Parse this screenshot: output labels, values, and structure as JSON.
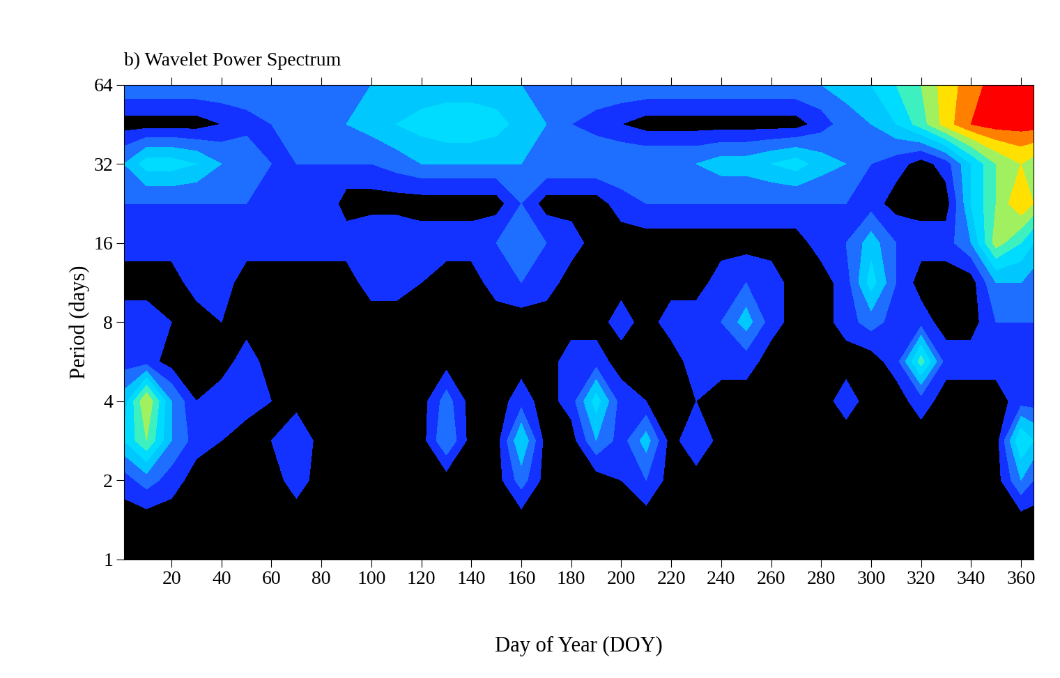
{
  "chart_data": {
    "type": "contour",
    "title": "b) Wavelet Power Spectrum",
    "x_label": "Day of Year (DOY)",
    "y_label": "Period (days)",
    "log": "y",
    "x": [
      1,
      10,
      20,
      30,
      40,
      50,
      60,
      70,
      80,
      90,
      100,
      110,
      120,
      130,
      140,
      150,
      160,
      170,
      180,
      190,
      200,
      210,
      220,
      230,
      240,
      250,
      260,
      270,
      280,
      290,
      300,
      310,
      320,
      330,
      340,
      350,
      360,
      365
    ],
    "y": [
      1,
      1.41,
      2,
      2.83,
      4,
      5.66,
      8,
      11.3,
      16,
      22.6,
      32,
      45.3,
      64
    ],
    "z": [
      [
        0.5,
        0.5,
        0.5,
        0.5,
        0.5,
        0.5,
        0.5,
        0.5,
        0.5,
        0.5,
        0.5,
        0.5,
        0.5,
        0.5,
        0.5,
        0.5,
        0.5,
        0.5,
        0.5,
        0.5,
        0.5,
        0.5,
        0.5,
        0.5,
        0.5,
        0.5,
        0.5,
        0.5,
        0.5,
        0.5,
        0.5,
        0.5,
        0.5,
        0.5,
        0.5,
        0.5,
        0.5,
        0.5
      ],
      [
        0.5,
        0.5,
        0.5,
        0.5,
        0.5,
        0.5,
        0.5,
        0.5,
        0.5,
        0.5,
        0.5,
        0.5,
        0.5,
        0.5,
        0.5,
        0.5,
        0.5,
        0.5,
        0.5,
        0.5,
        0.5,
        0.5,
        0.5,
        0.5,
        0.5,
        0.5,
        0.5,
        0.5,
        0.5,
        0.5,
        0.5,
        0.5,
        0.5,
        0.5,
        0.5,
        0.5,
        0.5,
        0.5
      ],
      [
        1.5,
        2.5,
        1.5,
        0.5,
        0.5,
        0.5,
        0.5,
        1.5,
        0.5,
        0.5,
        0.5,
        0.5,
        0.5,
        0.5,
        0.5,
        0.5,
        2.5,
        0.5,
        0.5,
        0.5,
        1,
        2,
        0.5,
        0.5,
        0.5,
        0.5,
        0.5,
        0.5,
        0.5,
        0.5,
        0.5,
        0.5,
        0.5,
        0.5,
        0.5,
        0.5,
        3,
        2
      ],
      [
        4,
        6,
        3,
        1.5,
        1,
        0.5,
        1,
        2,
        0.5,
        0.5,
        1,
        0.5,
        0.5,
        3,
        0.5,
        0.5,
        4,
        0.5,
        0.5,
        3,
        1.5,
        3.5,
        0.5,
        2,
        0.5,
        0.5,
        0.5,
        1,
        0.5,
        0.5,
        0.5,
        0.5,
        0.5,
        0.5,
        0.5,
        0.5,
        5,
        4
      ],
      [
        3.5,
        7,
        3,
        1,
        1.5,
        1.5,
        1,
        0.5,
        0.5,
        0.5,
        0.5,
        0.5,
        0.5,
        2.5,
        0.5,
        0.5,
        1.5,
        0.5,
        1.5,
        4.5,
        1.5,
        1,
        0.5,
        1,
        0.5,
        0.5,
        0.5,
        0.5,
        0.5,
        1.5,
        0.5,
        0.5,
        1.5,
        0.5,
        0.5,
        0.5,
        1.5,
        1.5
      ],
      [
        1.5,
        1.5,
        0.5,
        0.5,
        0.5,
        1.5,
        0.5,
        0.5,
        0.5,
        0.5,
        0.5,
        0.5,
        0.5,
        0.5,
        0.5,
        0.5,
        0.5,
        0.5,
        1.5,
        1.5,
        0.5,
        0.5,
        0.5,
        1.5,
        1.5,
        1.5,
        0.5,
        0.5,
        0.5,
        0.5,
        0.5,
        1.5,
        5.5,
        1.5,
        1.5,
        1.5,
        1.5,
        1.5
      ],
      [
        1.5,
        1.5,
        1,
        0.5,
        1,
        0.5,
        0.5,
        0.5,
        0.5,
        0.5,
        0.5,
        0.5,
        0.5,
        0.5,
        0.5,
        0.5,
        0.5,
        0.5,
        0.5,
        0.5,
        1.5,
        0.5,
        1.5,
        1.5,
        2,
        3.5,
        1.5,
        0.5,
        0.5,
        1.5,
        2.5,
        1.5,
        1.5,
        0.5,
        0.5,
        2,
        2,
        2
      ],
      [
        0.5,
        0.5,
        0.5,
        1.5,
        1.5,
        0.5,
        0.5,
        0.5,
        0.5,
        0.5,
        1.5,
        1.5,
        1,
        0.5,
        0.5,
        1.5,
        2,
        1.5,
        0.5,
        0.5,
        0.5,
        0.5,
        0.5,
        0.5,
        1.5,
        2,
        1.5,
        0.5,
        0.5,
        1.5,
        4.5,
        2,
        0.5,
        0.5,
        0.5,
        3,
        3,
        2.5
      ],
      [
        1.5,
        1.5,
        1.5,
        1,
        1.5,
        1.5,
        1.5,
        1.5,
        1.5,
        1.5,
        2,
        2,
        1.5,
        1.5,
        1.5,
        2,
        2.5,
        2,
        1.5,
        0.5,
        0.5,
        0.5,
        0.5,
        0.5,
        0.5,
        0.5,
        0.5,
        0.5,
        1.5,
        2,
        3.5,
        2,
        1.5,
        1.5,
        3,
        6.5,
        5,
        4
      ],
      [
        2,
        2,
        2,
        2,
        2,
        2,
        2,
        2,
        2,
        0.5,
        0.5,
        0.5,
        0.5,
        0.5,
        0.5,
        0.5,
        2,
        0.5,
        0.5,
        0.5,
        1.5,
        2,
        2,
        2,
        2,
        2,
        2,
        2,
        2,
        2,
        1.5,
        0.5,
        0.5,
        0.5,
        4,
        6,
        8,
        7
      ],
      [
        3,
        4.5,
        4.5,
        4,
        3,
        3,
        2,
        2,
        2,
        2,
        2,
        2.5,
        3,
        3,
        3,
        3,
        3,
        3,
        3,
        3,
        3,
        3,
        3,
        3,
        3.5,
        3.5,
        4,
        4.5,
        3.5,
        3,
        2,
        1.5,
        0.5,
        1.5,
        4,
        6,
        7,
        6.5
      ],
      [
        0.5,
        0.5,
        0.5,
        0.5,
        1,
        1.5,
        2,
        3,
        3,
        3,
        3.5,
        4,
        4.5,
        5,
        5,
        4.5,
        3.5,
        3,
        2,
        1.5,
        1,
        0.5,
        0.5,
        0.5,
        0.5,
        0.5,
        0.5,
        0.5,
        1.5,
        2.5,
        3,
        4,
        5.5,
        7.5,
        9,
        9.5,
        9.5,
        9.5
      ],
      [
        3,
        3,
        3,
        3,
        3,
        3,
        3,
        3,
        3,
        3,
        3,
        3,
        3,
        3,
        3,
        3,
        3,
        3,
        3,
        3,
        3,
        3,
        3,
        3,
        3,
        3,
        3,
        3,
        3,
        3.5,
        4,
        5,
        6,
        7.5,
        8.5,
        9.5,
        9.5,
        9.5
      ]
    ],
    "levels": [
      0,
      1,
      2,
      3,
      4,
      5,
      6,
      7,
      8,
      9,
      10
    ],
    "colors": [
      "#000000",
      "#1432ff",
      "#1e6eff",
      "#00c8ff",
      "#00dcff",
      "#3cf0c0",
      "#a0f060",
      "#ffe000",
      "#ff8000",
      "#ff0000"
    ],
    "xlim": [
      1,
      365
    ],
    "ylim": [
      1,
      64
    ],
    "xticks": [
      20,
      40,
      60,
      80,
      100,
      120,
      140,
      160,
      180,
      200,
      220,
      240,
      260,
      280,
      300,
      320,
      340,
      360
    ],
    "yticks": [
      1,
      2,
      4,
      8,
      16,
      32,
      64
    ]
  }
}
